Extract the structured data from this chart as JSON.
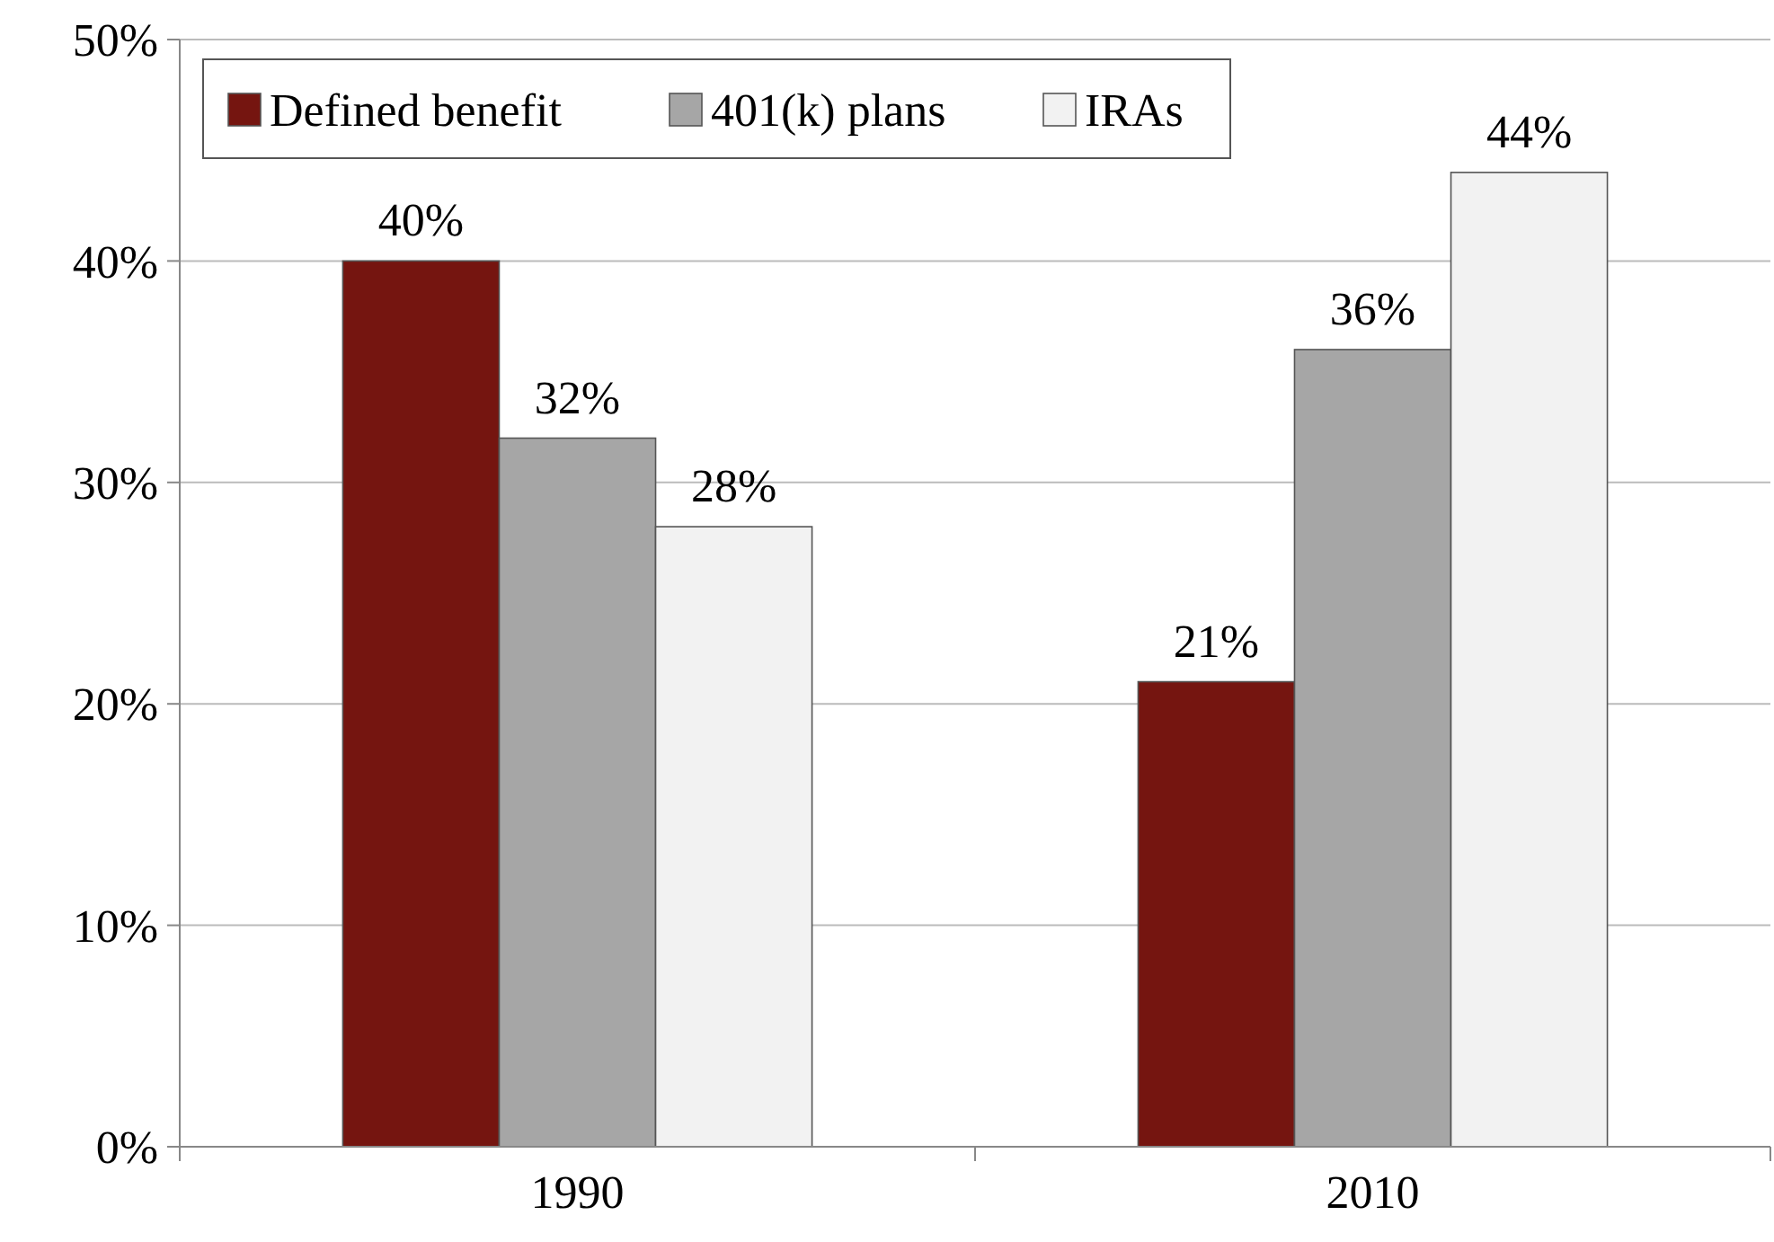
{
  "chart_data": {
    "type": "bar",
    "categories": [
      "1990",
      "2010"
    ],
    "series": [
      {
        "name": "Defined benefit",
        "color": "#751510",
        "values": [
          40,
          21
        ],
        "value_labels": [
          "40%",
          "21%"
        ]
      },
      {
        "name": "401(k) plans",
        "color": "#a6a6a6",
        "values": [
          32,
          36
        ],
        "value_labels": [
          "32%",
          "36%"
        ]
      },
      {
        "name": "IRAs",
        "color": "#f2f2f2",
        "values": [
          28,
          44
        ],
        "value_labels": [
          "28%",
          "44%"
        ]
      }
    ],
    "ylim": [
      0,
      50
    ],
    "yticks": [
      {
        "value": 0,
        "label": "0%"
      },
      {
        "value": 10,
        "label": "10%"
      },
      {
        "value": 20,
        "label": "20%"
      },
      {
        "value": 30,
        "label": "30%"
      },
      {
        "value": 40,
        "label": "40%"
      },
      {
        "value": 50,
        "label": "50%"
      }
    ],
    "grid": "y",
    "legend": "top left"
  }
}
